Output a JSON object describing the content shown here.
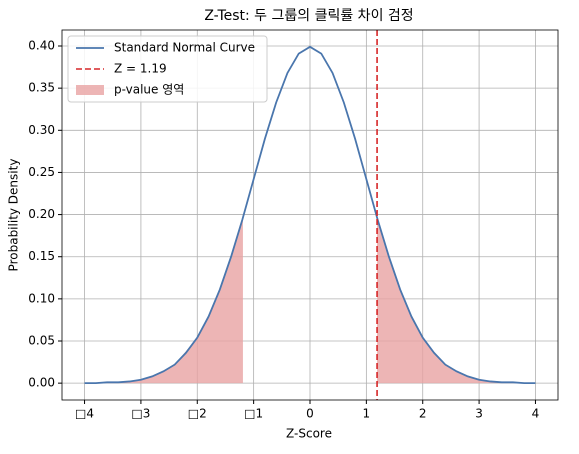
{
  "chart_data": {
    "type": "line",
    "title": "Z-Test: 두 그룹의 클릭률 차이 검정",
    "xlabel": "Z-Score",
    "ylabel": "Probability Density",
    "xlim": [
      -4.4,
      4.4
    ],
    "ylim": [
      -0.02,
      0.419
    ],
    "xticks": [
      {
        "value": -4,
        "label": "□4"
      },
      {
        "value": -3,
        "label": "□3"
      },
      {
        "value": -2,
        "label": "□2"
      },
      {
        "value": -1,
        "label": "□1"
      },
      0,
      1,
      2,
      3,
      4
    ],
    "yticks": [
      {
        "value": 0,
        "label": "0.00"
      },
      0.05,
      {
        "value": 0.1,
        "label": "0.10"
      },
      0.15,
      {
        "value": 0.2,
        "label": "0.20"
      },
      0.25,
      {
        "value": 0.3,
        "label": "0.30"
      },
      0.35,
      {
        "value": 0.4,
        "label": "0.40"
      }
    ],
    "grid": true,
    "legend": "upper left",
    "series": [
      {
        "name": "Standard Normal Curve",
        "type": "line",
        "color": "#4a76ad",
        "x": [
          -4,
          -3.8,
          -3.6,
          -3.4,
          -3.2,
          -3,
          -2.8,
          -2.6,
          -2.4,
          -2.2,
          -2,
          -1.8,
          -1.6,
          -1.4,
          -1.2,
          -1,
          -0.8,
          -0.6,
          -0.4,
          -0.2,
          0,
          0.2,
          0.4,
          0.6,
          0.8,
          1,
          1.2,
          1.4,
          1.6,
          1.8,
          2,
          2.2,
          2.4,
          2.6,
          2.8,
          3,
          3.2,
          3.4,
          3.6,
          3.8,
          4
        ],
        "values": [
          0,
          0,
          0.001,
          0.001,
          0.002,
          0.004,
          0.008,
          0.014,
          0.022,
          0.036,
          0.054,
          0.079,
          0.111,
          0.15,
          0.194,
          0.242,
          0.29,
          0.333,
          0.368,
          0.391,
          0.399,
          0.391,
          0.368,
          0.333,
          0.29,
          0.242,
          0.194,
          0.15,
          0.111,
          0.079,
          0.054,
          0.036,
          0.022,
          0.014,
          0.008,
          0.004,
          0.002,
          0.001,
          0.001,
          0,
          0
        ]
      },
      {
        "name": "Z = 1.19",
        "type": "vline",
        "color": "#d62728",
        "x": 1.19
      },
      {
        "name": "p-value 영역",
        "type": "area",
        "color": "#e8a3a3",
        "x": [
          -4,
          -3.6,
          -3.2,
          -2.8,
          -2.4,
          -2,
          -1.8,
          -1.6,
          -1.4,
          -1.19,
          null,
          1.19,
          1.4,
          1.6,
          1.8,
          2,
          2.2,
          2.4,
          2.8,
          3.2,
          3.6,
          4
        ],
        "values": [
          0,
          0.001,
          0.002,
          0.008,
          0.022,
          0.054,
          0.079,
          0.111,
          0.15,
          0.197,
          null,
          0.197,
          0.15,
          0.111,
          0.079,
          0.054,
          0.036,
          0.022,
          0.008,
          0.002,
          0.001,
          0
        ]
      }
    ]
  }
}
